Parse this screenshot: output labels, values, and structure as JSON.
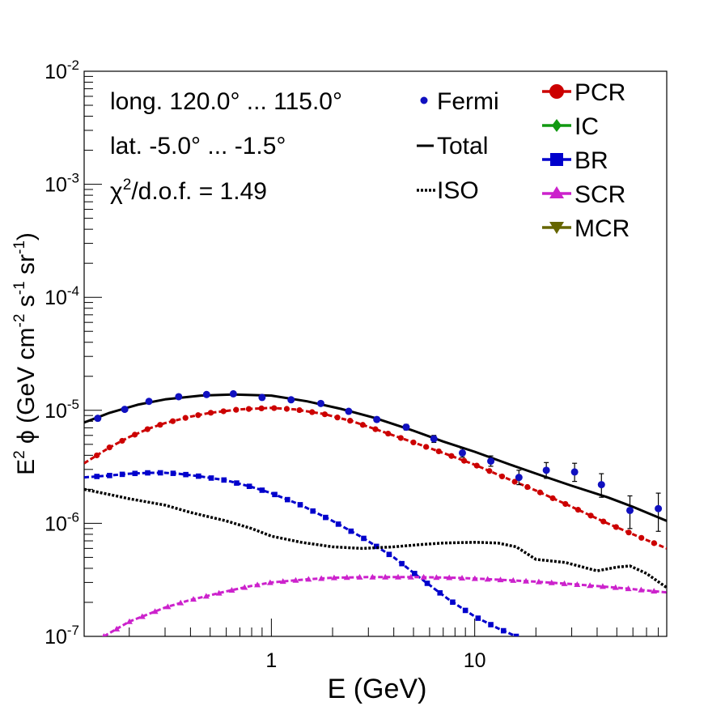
{
  "chart_data": {
    "type": "line",
    "xscale": "log",
    "yscale": "log",
    "xlim": [
      0.12,
      88
    ],
    "ylim": [
      1e-07,
      0.01
    ],
    "xlabel": "E (GeV)",
    "ylabel": {
      "pre": "E",
      "sup1": "2",
      "mid": " ϕ (GeV cm",
      "sup2": "-2",
      "mid2": " s",
      "sup3": "-1",
      "mid3": " sr",
      "sup4": "-1",
      "post": ")"
    },
    "x_ticks": [
      {
        "value": 1,
        "label": "1"
      },
      {
        "value": 10,
        "label": "10"
      }
    ],
    "y_ticks": [
      {
        "value": 1e-07,
        "base": "10",
        "exp": "-7"
      },
      {
        "value": 1e-06,
        "base": "10",
        "exp": "-6"
      },
      {
        "value": 1e-05,
        "base": "10",
        "exp": "-5"
      },
      {
        "value": 0.0001,
        "base": "10",
        "exp": "-4"
      },
      {
        "value": 0.001,
        "base": "10",
        "exp": "-3"
      },
      {
        "value": 0.01,
        "base": "10",
        "exp": "-2"
      }
    ],
    "annotations": {
      "line1": "long. 120.0° ... 115.0°",
      "line2": "lat. -5.0° ... -1.5°",
      "line3_chi": "χ",
      "line3_sup": "2",
      "line3_rest": "/d.o.f. = 1.49"
    },
    "legend_left": [
      {
        "label": "Fermi",
        "style": "point",
        "color": "#1010c0"
      },
      {
        "label": "Total",
        "style": "solid",
        "color": "#000000"
      },
      {
        "label": "ISO",
        "style": "dotted",
        "color": "#000000"
      }
    ],
    "legend_right": [
      {
        "label": "PCR",
        "marker": "circle",
        "color": "#cc0000"
      },
      {
        "label": "IC",
        "marker": "diamond",
        "color": "#119911"
      },
      {
        "label": "BR",
        "marker": "square",
        "color": "#0000cc"
      },
      {
        "label": "SCR",
        "marker": "triangle-up",
        "color": "#cc22cc"
      },
      {
        "label": "MCR",
        "marker": "triangle-down",
        "color": "#666600"
      }
    ],
    "fermi": {
      "x": [
        0.14,
        0.19,
        0.25,
        0.35,
        0.48,
        0.65,
        0.9,
        1.25,
        1.75,
        2.4,
        3.3,
        4.6,
        6.3,
        8.7,
        12,
        16.5,
        22.5,
        31,
        42,
        58,
        80
      ],
      "y": [
        8.5e-06,
        1.02e-05,
        1.2e-05,
        1.32e-05,
        1.38e-05,
        1.4e-05,
        1.3e-05,
        1.24e-05,
        1.15e-05,
        9.8e-06,
        8.3e-06,
        7.1e-06,
        5.6e-06,
        4.2e-06,
        3.55e-06,
        2.55e-06,
        2.95e-06,
        2.85e-06,
        2.2e-06,
        1.3e-06,
        1.35e-06
      ],
      "y_err_low": [
        8.1e-06,
        9.8e-06,
        1.16e-05,
        1.28e-05,
        1.34e-05,
        1.36e-05,
        1.26e-05,
        1.2e-05,
        1.11e-05,
        9.4e-06,
        7.9e-06,
        6.7e-06,
        5.2e-06,
        3.85e-06,
        3.2e-06,
        2.2e-06,
        2.5e-06,
        2.35e-06,
        1.7e-06,
        9e-07,
        8.5e-07
      ],
      "y_err_high": [
        8.9e-06,
        1.06e-05,
        1.24e-05,
        1.36e-05,
        1.42e-05,
        1.44e-05,
        1.34e-05,
        1.28e-05,
        1.19e-05,
        1.02e-05,
        8.7e-06,
        7.5e-06,
        6e-06,
        4.6e-06,
        3.95e-06,
        2.95e-06,
        3.45e-06,
        3.4e-06,
        2.75e-06,
        1.75e-06,
        1.85e-06
      ]
    },
    "series": [
      {
        "name": "Total",
        "color": "#000000",
        "dash": "solid",
        "marker": "none",
        "x": [
          0.12,
          0.16,
          0.22,
          0.3,
          0.45,
          0.65,
          1.0,
          1.5,
          2.2,
          3.2,
          5.0,
          7.0,
          10,
          15,
          22,
          30,
          45,
          60,
          88
        ],
        "y": [
          7.8e-06,
          9.5e-06,
          1.12e-05,
          1.25e-05,
          1.35e-05,
          1.38e-05,
          1.35e-05,
          1.2e-05,
          1.03e-05,
          8.6e-06,
          6.6e-06,
          5.3e-06,
          4.3e-06,
          3.3e-06,
          2.6e-06,
          2.15e-06,
          1.7e-06,
          1.4e-06,
          1.05e-06
        ]
      },
      {
        "name": "PCR",
        "color": "#cc0000",
        "dash": "dashed",
        "marker": "circle",
        "x": [
          0.12,
          0.16,
          0.2,
          0.25,
          0.3,
          0.4,
          0.5,
          0.7,
          1.0,
          1.3,
          1.8,
          2.5,
          3.5,
          5.0,
          7.0,
          10,
          14,
          20,
          30,
          45,
          60,
          88
        ],
        "y": [
          3.4e-06,
          4.7e-06,
          5.8e-06,
          6.9e-06,
          7.7e-06,
          8.8e-06,
          9.5e-06,
          1.02e-05,
          1.05e-05,
          1.02e-05,
          9.3e-06,
          8e-06,
          6.5e-06,
          5.2e-06,
          4.2e-06,
          3.3e-06,
          2.55e-06,
          1.95e-06,
          1.4e-06,
          1e-06,
          8e-07,
          6e-07
        ]
      },
      {
        "name": "BR",
        "color": "#0000cc",
        "dash": "dashed",
        "marker": "square",
        "x": [
          0.12,
          0.16,
          0.2,
          0.25,
          0.3,
          0.35,
          0.45,
          0.6,
          0.8,
          1.0,
          1.4,
          2.0,
          2.8,
          4.0,
          5.5,
          7.5,
          10,
          13,
          16
        ],
        "y": [
          2.55e-06,
          2.65e-06,
          2.75e-06,
          2.8e-06,
          2.8e-06,
          2.75e-06,
          2.6e-06,
          2.4e-06,
          2.1e-06,
          1.85e-06,
          1.45e-06,
          1.05e-06,
          7.5e-07,
          5e-07,
          3.2e-07,
          2.1e-07,
          1.5e-07,
          1.18e-07,
          1e-07
        ]
      },
      {
        "name": "ISO",
        "color": "#000000",
        "dash": "dotted",
        "marker": "none",
        "x": [
          0.12,
          0.16,
          0.2,
          0.3,
          0.4,
          0.6,
          0.8,
          1.0,
          1.4,
          2.0,
          2.8,
          4.0,
          5.5,
          7.0,
          10,
          13,
          16,
          20,
          28,
          40,
          50,
          58,
          70,
          88
        ],
        "y": [
          2e-06,
          1.8e-06,
          1.65e-06,
          1.45e-06,
          1.25e-06,
          1.05e-06,
          9e-07,
          7.7e-07,
          6.8e-07,
          6.2e-07,
          6e-07,
          6.2e-07,
          6.5e-07,
          6.7e-07,
          6.8e-07,
          6.7e-07,
          6.2e-07,
          4.8e-07,
          4.5e-07,
          3.8e-07,
          4.1e-07,
          4.2e-07,
          3.6e-07,
          2.7e-07
        ]
      },
      {
        "name": "SCR",
        "color": "#cc22cc",
        "dash": "dashed",
        "marker": "triangle-up",
        "x": [
          0.15,
          0.2,
          0.3,
          0.4,
          0.6,
          0.8,
          1.0,
          1.5,
          2.0,
          3.0,
          5.0,
          8.0,
          12,
          20,
          30,
          50,
          88
        ],
        "y": [
          1e-07,
          1.35e-07,
          1.8e-07,
          2.1e-07,
          2.5e-07,
          2.8e-07,
          3e-07,
          3.2e-07,
          3.3e-07,
          3.35e-07,
          3.35e-07,
          3.3e-07,
          3.2e-07,
          3.05e-07,
          2.9e-07,
          2.7e-07,
          2.45e-07
        ]
      }
    ]
  }
}
